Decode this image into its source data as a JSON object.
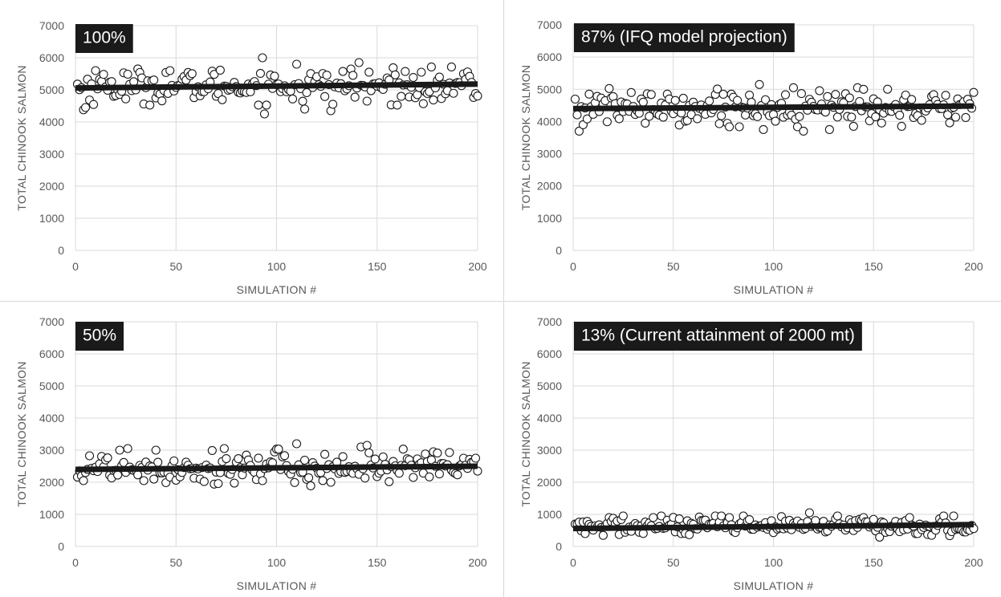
{
  "chart_data": [
    {
      "type": "scatter",
      "title": "100%",
      "xlabel": "SIMULATION #",
      "ylabel": "TOTAL CHINOOK SALMON",
      "xlim": [
        0,
        200
      ],
      "ylim": [
        0,
        7000
      ],
      "xticks": [
        "0",
        "50",
        "100",
        "150",
        "200"
      ],
      "yticks": [
        "0",
        "1000",
        "2000",
        "3000",
        "4000",
        "5000",
        "6000",
        "7000"
      ],
      "grid": true,
      "trendline": {
        "x": [
          0,
          200
        ],
        "y": [
          5060,
          5180
        ]
      },
      "scatter_center": 5120,
      "scatter_spread": 270,
      "outliers": {
        "4": 4380,
        "5": 4450,
        "10": 5600,
        "30": 5000,
        "47": 5600,
        "93": 6000,
        "94": 4250,
        "110": 5800,
        "114": 4400,
        "127": 4350,
        "137": 5650,
        "141": 5850,
        "145": 4650,
        "172": 5550,
        "193": 5500
      }
    },
    {
      "type": "scatter",
      "title": "87% (IFQ model projection)",
      "xlabel": "SIMULATION #",
      "ylabel": "TOTAL CHINOOK SALMON",
      "xlim": [
        0,
        200
      ],
      "ylim": [
        0,
        7000
      ],
      "xticks": [
        "0",
        "50",
        "100",
        "150",
        "200"
      ],
      "yticks": [
        "0",
        "1000",
        "2000",
        "3000",
        "4000",
        "5000",
        "6000",
        "7000"
      ],
      "grid": true,
      "trendline": {
        "x": [
          0,
          200
        ],
        "y": [
          4400,
          4480
        ]
      },
      "scatter_center": 4430,
      "scatter_spread": 270,
      "outliers": {
        "3": 3700,
        "5": 3900,
        "8": 4850,
        "29": 4900,
        "36": 3950,
        "47": 4850,
        "93": 5150,
        "95": 3750,
        "110": 5050,
        "115": 3700,
        "128": 3750,
        "142": 5050,
        "145": 5000,
        "164": 3850,
        "192": 4700
      }
    },
    {
      "type": "scatter",
      "title": "50%",
      "xlabel": "SIMULATION #",
      "ylabel": "TOTAL CHINOOK SALMON",
      "xlim": [
        0,
        200
      ],
      "ylim": [
        0,
        7000
      ],
      "xticks": [
        "0",
        "50",
        "100",
        "150",
        "200"
      ],
      "yticks": [
        "0",
        "1000",
        "2000",
        "3000",
        "4000",
        "5000",
        "6000",
        "7000"
      ],
      "grid": true,
      "trendline": {
        "x": [
          0,
          200
        ],
        "y": [
          2400,
          2500
        ]
      },
      "scatter_center": 2460,
      "scatter_spread": 260,
      "outliers": {
        "4": 2050,
        "22": 3000,
        "26": 3050,
        "34": 2050,
        "40": 3000,
        "62": 2100,
        "74": 3050,
        "93": 2050,
        "110": 3200,
        "127": 2000,
        "142": 3100,
        "145": 3150,
        "168": 2150,
        "178": 2950,
        "193": 2750
      }
    },
    {
      "type": "scatter",
      "title": "13% (Current attainment of 2000 mt)",
      "xlabel": "SIMULATION #",
      "ylabel": "TOTAL CHINOOK SALMON",
      "xlim": [
        0,
        200
      ],
      "ylim": [
        0,
        7000
      ],
      "xticks": [
        "0",
        "50",
        "100",
        "150",
        "200"
      ],
      "yticks": [
        "0",
        "1000",
        "2000",
        "3000",
        "4000",
        "5000",
        "6000",
        "7000"
      ],
      "grid": true,
      "trendline": {
        "x": [
          0,
          200
        ],
        "y": [
          560,
          680
        ]
      },
      "scatter_center": 620,
      "scatter_spread": 150,
      "outliers": {
        "6": 400,
        "18": 900,
        "25": 950,
        "40": 900,
        "44": 950,
        "54": 400,
        "74": 950,
        "78": 900,
        "118": 1050,
        "145": 900,
        "168": 900,
        "172": 400,
        "190": 950,
        "196": 450
      }
    }
  ]
}
